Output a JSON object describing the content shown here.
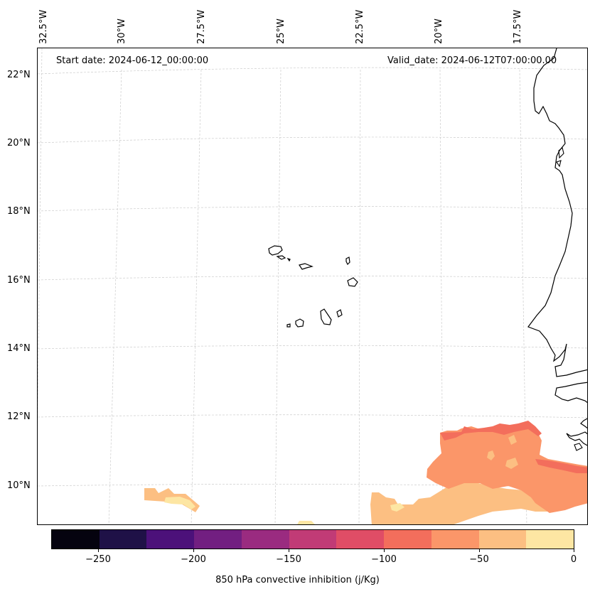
{
  "map": {
    "start_date": "Start date: 2024-06-12_00:00:00",
    "valid_date": "Valid_date: 2024-06-12T07:00:00.00",
    "lon_labels": [
      "32.5°W",
      "30°W",
      "27.5°W",
      "25°W",
      "22.5°W",
      "20°W",
      "17.5°W"
    ],
    "lat_labels": [
      "22°N",
      "20°N",
      "18°N",
      "16°N",
      "14°N",
      "12°N",
      "10°N"
    ],
    "features": [
      "Cape Verde islands",
      "West African coastline"
    ],
    "colors": {
      "coast": "#000000",
      "grid": "#cccccc",
      "cin_0_to_m25": "#fde6a3",
      "cin_m25_to_m50": "#fcbf82",
      "cin_m50_to_m75": "#fb9669",
      "cin_m75_to_m100": "#f36e5c"
    }
  },
  "colorbar": {
    "label": "850 hPa convective inhibition (j/Kg)",
    "ticks": [
      "−250",
      "−200",
      "−150",
      "−100",
      "−50",
      "0"
    ],
    "colors": [
      "#05030f",
      "#1f1147",
      "#4c117a",
      "#721f81",
      "#9a2b80",
      "#c13b76",
      "#e04d66",
      "#f36e5c",
      "#fb9669",
      "#fcbf82",
      "#fde6a3"
    ]
  }
}
